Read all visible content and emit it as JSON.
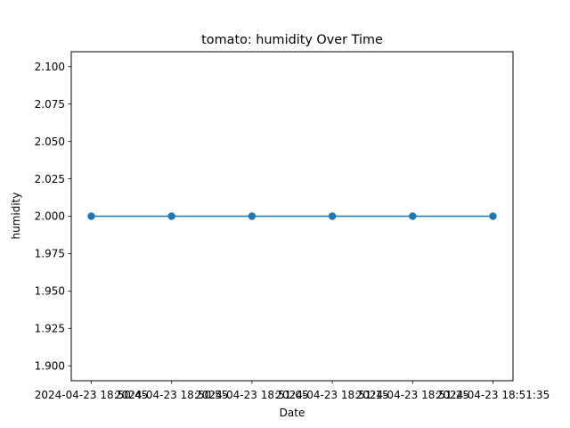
{
  "chart_data": {
    "type": "line",
    "title": "tomato: humidity Over Time",
    "xlabel": "Date",
    "ylabel": "humidity",
    "x": [
      "2024-04-23 18:50:45",
      "2024-04-23 18:50:55",
      "2024-04-23 18:51:05",
      "2024-04-23 18:51:15",
      "2024-04-23 18:51:25",
      "2024-04-23 18:51:35"
    ],
    "series": [
      {
        "values": [
          2.0,
          2.0,
          2.0,
          2.0,
          2.0,
          2.0
        ],
        "color": "#1f77b4",
        "marker": "circle"
      }
    ],
    "ylim": [
      1.89,
      2.11
    ],
    "yticks": [
      "1.900",
      "1.925",
      "1.950",
      "1.975",
      "2.000",
      "2.025",
      "2.050",
      "2.075",
      "2.100"
    ],
    "grid": false,
    "legend": "none"
  }
}
